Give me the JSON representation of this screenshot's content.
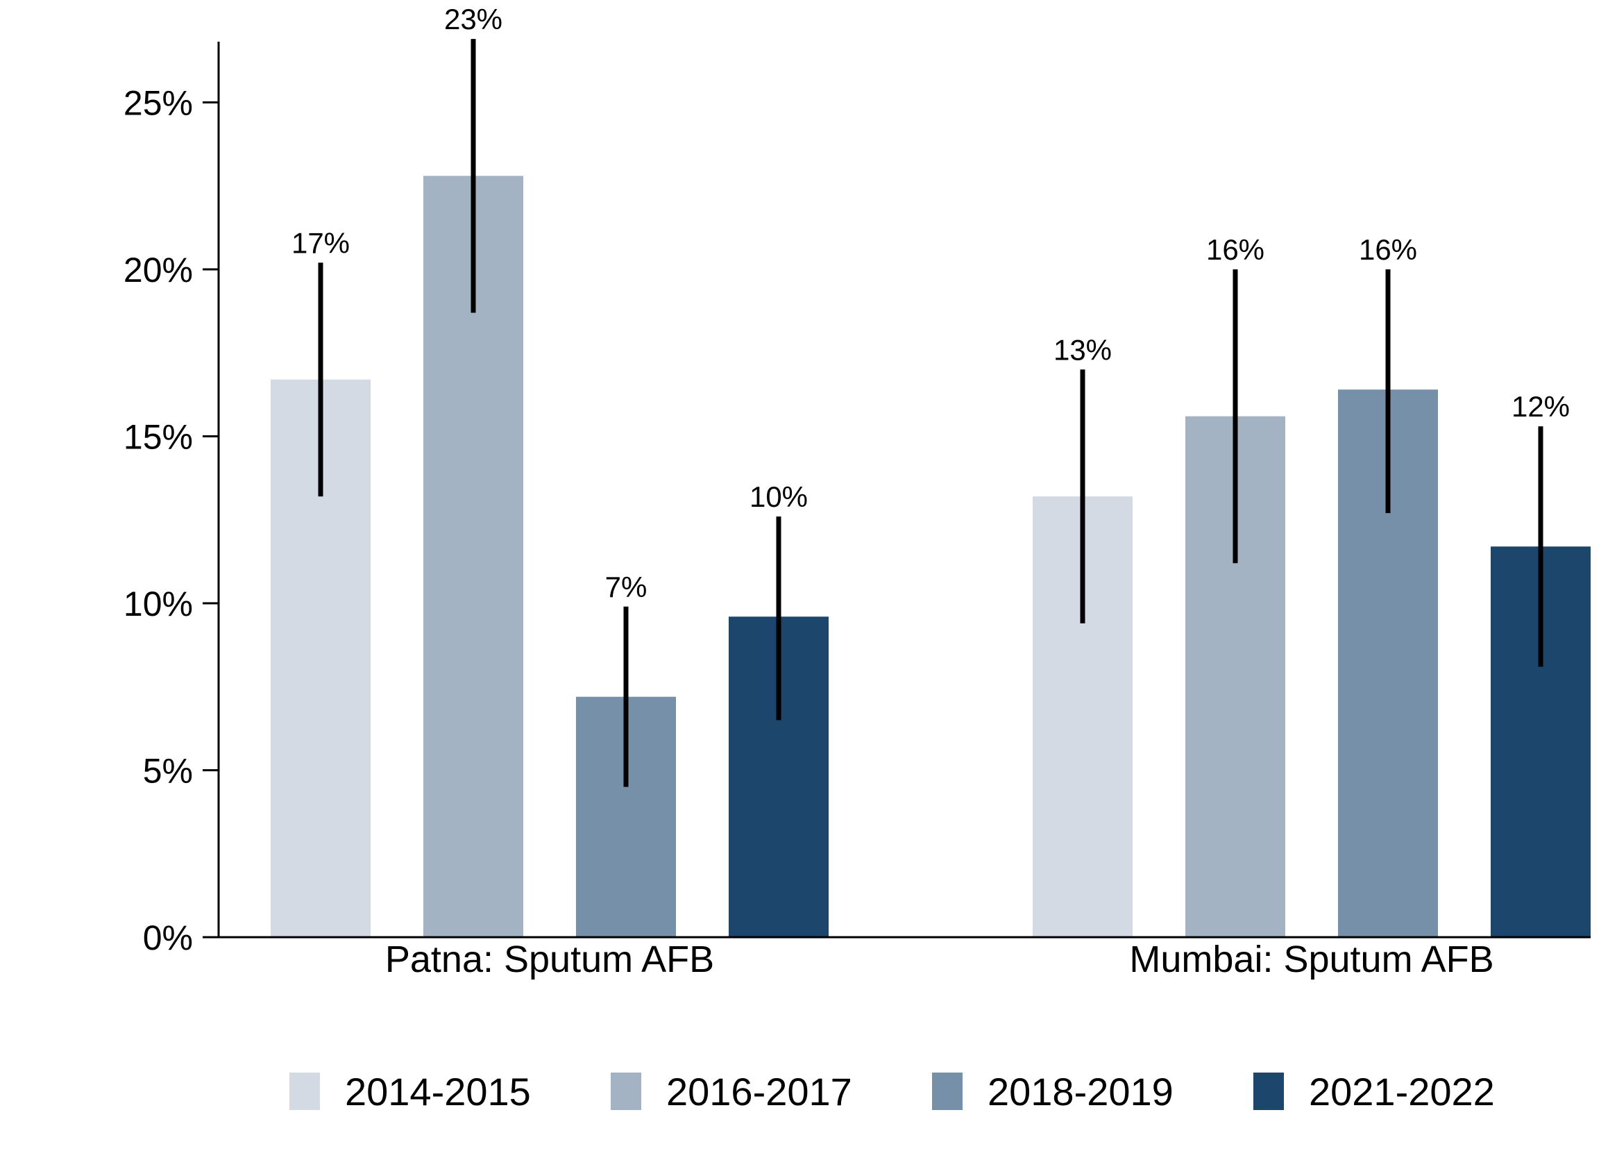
{
  "chart_data": {
    "type": "bar",
    "categories": [
      "Patna: Sputum AFB",
      "Mumbai: Sputum AFB"
    ],
    "series": [
      {
        "name": "2014-2015",
        "color": "#d3dae3",
        "values": [
          16.7,
          13.2
        ],
        "ci_low": [
          13.2,
          9.4
        ],
        "ci_high": [
          20.2,
          17.0
        ],
        "labels": [
          "17%",
          "13%"
        ]
      },
      {
        "name": "2016-2017",
        "color": "#a3b3c3",
        "values": [
          22.8,
          15.6
        ],
        "ci_low": [
          18.7,
          11.2
        ],
        "ci_high": [
          26.9,
          20.0
        ],
        "labels": [
          "23%",
          "16%"
        ]
      },
      {
        "name": "2018-2019",
        "color": "#7690aa",
        "values": [
          7.2,
          16.4
        ],
        "ci_low": [
          4.5,
          12.7
        ],
        "ci_high": [
          9.9,
          20.0
        ],
        "labels": [
          "7%",
          "16%"
        ]
      },
      {
        "name": "2021-2022",
        "color": "#1c466c",
        "values": [
          9.6,
          11.7
        ],
        "ci_low": [
          6.5,
          8.1
        ],
        "ci_high": [
          12.6,
          15.3
        ],
        "labels": [
          "10%",
          "12%"
        ]
      }
    ],
    "yticks": [
      "0%",
      "5%",
      "10%",
      "15%",
      "20%",
      "25%"
    ],
    "ytick_values": [
      0,
      5,
      10,
      15,
      20,
      25
    ],
    "ylim": [
      0,
      26.9
    ],
    "legend_position": "bottom"
  }
}
